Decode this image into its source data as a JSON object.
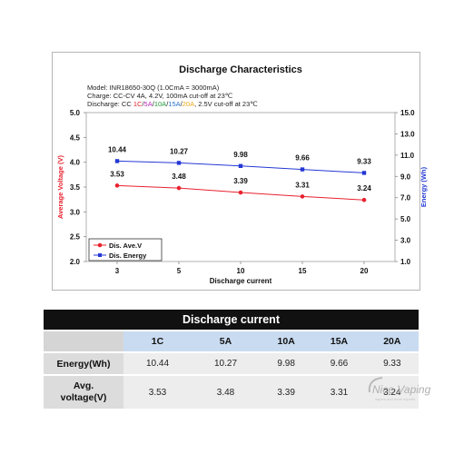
{
  "chart_data": {
    "type": "line",
    "title": "Discharge Characteristics",
    "notes": [
      "Model: INR18650-30Q (1.0CmA = 3000mA)",
      "Charge: CC-CV 4A, 4.2V, 100mA cut-off at 23℃"
    ],
    "discharge_note": {
      "prefix": "Discharge: CC ",
      "parts": [
        {
          "text": "1C",
          "color": "#e8212e"
        },
        {
          "text": "/",
          "color": "#222222"
        },
        {
          "text": "5A",
          "color": "#b72fb7"
        },
        {
          "text": "/",
          "color": "#222222"
        },
        {
          "text": "10A",
          "color": "#1e9a3a"
        },
        {
          "text": "/",
          "color": "#222222"
        },
        {
          "text": "15A",
          "color": "#2a74c9"
        },
        {
          "text": "/",
          "color": "#222222"
        },
        {
          "text": "20A",
          "color": "#f0a91b"
        }
      ],
      "suffix": ", 2.5V cut-off at 23℃"
    },
    "categories": [
      "3",
      "5",
      "10",
      "15",
      "20"
    ],
    "xlabel": "Discharge current",
    "ylabel_left": "Average Voltage (V)",
    "ylabel_right": "Energy (Wh)",
    "ylim_left": [
      2.0,
      5.0
    ],
    "yticks_left": [
      "2.0",
      "2.5",
      "3.0",
      "3.5",
      "4.0",
      "4.5",
      "5.0"
    ],
    "ylim_right": [
      1.0,
      15.0
    ],
    "yticks_right": [
      "1.0",
      "3.0",
      "5.0",
      "7.0",
      "9.0",
      "11.0",
      "13.0",
      "15.0"
    ],
    "series": [
      {
        "name": "Dis. Ave.V",
        "axis": "left",
        "color": "#e8212e",
        "marker": "circle",
        "values": [
          3.53,
          3.48,
          3.39,
          3.31,
          3.24
        ],
        "labels": [
          "3.53",
          "3.48",
          "3.39",
          "3.31",
          "3.24"
        ]
      },
      {
        "name": "Dis. Energy",
        "axis": "right",
        "color": "#2438d4",
        "marker": "square",
        "values": [
          10.44,
          10.27,
          9.98,
          9.66,
          9.33
        ],
        "labels": [
          "10.44",
          "10.27",
          "9.98",
          "9.66",
          "9.33"
        ]
      }
    ],
    "legend_position": "bottom-left",
    "grid": false,
    "axis_label_colors": {
      "left": "#e8212e",
      "right": "#2438d4"
    },
    "frame_color": "#b5b5b5",
    "plot_background": "#ffffff"
  },
  "table": {
    "title": "Discharge current",
    "columns": [
      "1C",
      "5A",
      "10A",
      "15A",
      "20A"
    ],
    "rows": [
      {
        "label": "Energy(Wh)",
        "values": [
          "10.44",
          "10.27",
          "9.98",
          "9.66",
          "9.33"
        ]
      },
      {
        "label": "Avg.\nvoltage(V)",
        "values": [
          "3.53",
          "3.48",
          "3.39",
          "3.31",
          "3.24"
        ]
      }
    ]
  },
  "watermark": {
    "text": "Nice Vaping",
    "tagline": "vapers and more experts"
  }
}
